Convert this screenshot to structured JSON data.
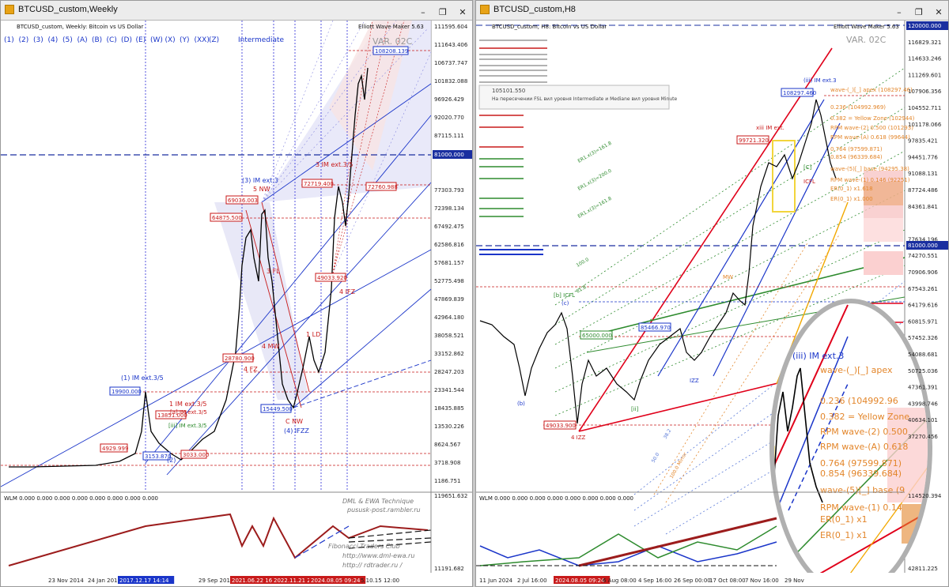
{
  "left_window": {
    "title": "BTCUSD_custom,Weekly",
    "symbol_line": "BTCUSD_custom, Weekly: Bitcoin vs US Dollar",
    "indicator_name": "Elliott Wave Maker 5.63",
    "version": "VAR. 02C",
    "wave_buttons": [
      "(1)",
      "(2)",
      "(3)",
      "(4)",
      "(5)",
      "(A)",
      "(B)",
      "(C)",
      "(D)",
      "(E)",
      "(W)",
      "(X)",
      "(Y)",
      "(XX)",
      "(Z)"
    ],
    "degree_label": "Intermediate",
    "price_axis": [
      "111595.604",
      "111643.406",
      "106737.747",
      "101832.088",
      "96926.429",
      "92020.770",
      "87115.111",
      "82209.452",
      "81000.000",
      "77303.793",
      "72398.134",
      "67492.475",
      "62586.816",
      "57681.157",
      "52775.498",
      "47869.839",
      "42964.180",
      "38058.521",
      "33152.862",
      "28247.203",
      "23341.544",
      "18435.885",
      "13530.226",
      "8624.567",
      "3718.908",
      "1186.751"
    ],
    "date_axis": [
      "23 Nov 2014",
      "24 Jan 2016",
      "2017.12.17 14:14",
      "29 Sep 2019",
      "2021.06.22 16:55",
      "2022.11.21 23:00",
      "2024.08.05 09:24",
      "5.10.15 12:00"
    ],
    "wlm_label": "WLM 0.000 0.000 0.000 0.000 0.000 0.000 0.000 0.000",
    "wlm_axis": [
      "119651.632",
      "11191.682"
    ],
    "watermark": [
      "DML & EWA Technique",
      "pususk-post.rambler.ru",
      "Fibonacci  Traders  Club",
      "http://www.dml-ewa.ru",
      "http://  rdtrader.ru /"
    ],
    "price_boxes": [
      "108208.139",
      "69036.003",
      "64875.500",
      "72719.400",
      "72760.988",
      "49033.920",
      "28780.900",
      "19900.000",
      "15449.500",
      "13851.000",
      "4929.999",
      "3153.870",
      "3033.000"
    ],
    "wave_labels": [
      "(1) IM ext.3/5",
      "(3) IM ext.3",
      "5 NW",
      "3 FL",
      "3 IM ext.3/5",
      "1 IM ext.3/5",
      "[iii] IM ext.3/5",
      "1 LD",
      "4 MW",
      "4 FZ",
      "4 IFZ",
      "(4) IFZZ",
      "C NW",
      "(2)",
      "[a] IM ext.3/5"
    ]
  },
  "right_window": {
    "title": "BTCUSD_custom,H8",
    "symbol_line": "BTCUSD_custom, H8: Bitcoin vs US Dollar",
    "indicator_name": "Elliott Wave Maker 5.63",
    "version": "VAR. 02C",
    "tooltip_value": "105101.550",
    "tooltip_text": "На пересечении FSL вил уровня Intermediate и Mediane вил уровня Minute",
    "price_axis": [
      "120000.000",
      "116829.321",
      "114633.246",
      "111269.601",
      "107906.356",
      "104552.711",
      "101178.066",
      "97835.421",
      "94451.776",
      "91088.131",
      "87724.486",
      "84361.841",
      "81000.000",
      "77634.196",
      "74270.551",
      "70906.906",
      "67543.261",
      "64179.616",
      "60815.971",
      "57452.326",
      "54088.681",
      "50725.036",
      "47361.391",
      "43998.746",
      "40634.101",
      "37270.456",
      "114520.394",
      "42811.225"
    ],
    "date_axis": [
      "11 Jun 2024",
      "2 Jul 16:00",
      "2024.08.05 09:24",
      "6 Aug 08:00",
      "4 Sep 16:00",
      "26 Sep 00:00",
      "17 Oct 08:00",
      "7 Nov 16:00",
      "29 Nov"
    ],
    "wlm_label": "WLM 0.000 0.000 0.000 0.000 0.000 0.000 0.000 0.000",
    "fib_labels": [
      "wave-(_)[_] apex (108297.46)",
      "0.236 (104992.969)",
      "0.382 = Yellow Zone (102944)",
      "RPM wave-(2) 0.500 (101293)",
      "RPM wave-(A) 0.618 (99644)",
      "0.764 (97599.871)",
      "0.854 (96339.684)",
      "wave-(5)[_] base (94295.38)",
      "RPM wave-(1) 0.146 (92251)",
      "ER(0_1) x1.618",
      "ER(0_1) x1.000"
    ],
    "magnifier_labels": [
      "wave-(_)[_] apex",
      "0.236 (104992.96",
      "0.382 = Yellow Zone",
      "RPM wave-(2) 0.500",
      "RPM wave-(A) 0.618",
      "0.764 (97599.871)",
      "0.854 (96339.684)",
      "wave-(5)[_] base (9",
      "RPM wave-(1) 0.14",
      "ER(0_1) x1",
      "ER(0_1) x1"
    ],
    "price_boxes": [
      "108297.460",
      "99721.320",
      "85466.970",
      "65000.000",
      "49033.900"
    ],
    "wave_labels": [
      "(iii) IM ext.3",
      "xiii IM ext.",
      "[b] ICFL",
      "(c)",
      "(b)",
      "4 IZZ",
      "[ii]",
      "MW",
      "[C]",
      "ICFL",
      "IZZ"
    ],
    "fan_labels": [
      "ER1.x(3)=161.8",
      "ER1.x(3)=200.0",
      "ER1.x(3)=161.8",
      "100.0",
      "61.8",
      "38.2",
      "50.0",
      "100.0 Mirror"
    ]
  },
  "colors": {
    "bull_red": "#e0001a",
    "pitch_blue": "#1a35c9",
    "pitch_green": "#2e8b2e",
    "fib_orange": "#e3862b",
    "yellow_zone": "#f2d53c",
    "candle": "#000000",
    "wlm_red": "#9c1c1c",
    "level_81000": "#1a2fa0"
  }
}
